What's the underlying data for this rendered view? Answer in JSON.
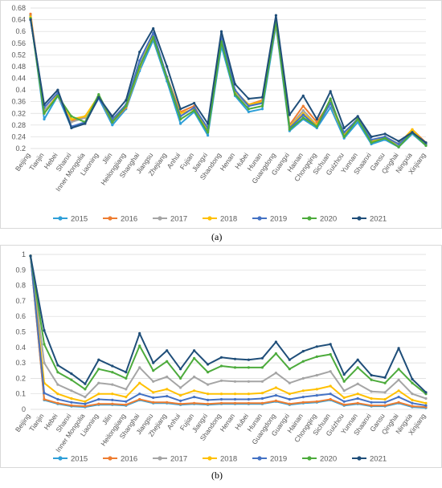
{
  "captions": {
    "a": "(a)",
    "b": "(b)"
  },
  "colors": {
    "2015": "#2e9fd8",
    "2016": "#ee7d31",
    "2017": "#a5a5a5",
    "2018": "#ffc000",
    "2019": "#4472c4",
    "2020": "#4dab3c",
    "2021": "#1f4e79"
  },
  "chart_data": [
    {
      "type": "line",
      "id": "a",
      "ylim": [
        0.2,
        0.68
      ],
      "yticks": [
        "0.2",
        "0.24",
        "0.28",
        "0.32",
        "0.36",
        "0.4",
        "0.44",
        "0.48",
        "0.52",
        "0.56",
        "0.6",
        "0.64",
        "0.68"
      ],
      "grid": true,
      "legend": "bottom",
      "categories": [
        "Beijing",
        "Tianjin",
        "Hebei",
        "Shanxi",
        "Inner Mongolia",
        "Liaoning",
        "Jilin",
        "Heilongjiang",
        "Shanghai",
        "Jiangsu",
        "Zhejiang",
        "Anhui",
        "Fujian",
        "Jiangxi",
        "Shandong",
        "Henan",
        "Hubei",
        "Hunan",
        "Guangdong",
        "Guangxi",
        "Hainan",
        "Chongqing",
        "Sichuan",
        "Guizhou",
        "Yunnan",
        "Shaanxi",
        "Gansu",
        "Qinghai",
        "Ningxia",
        "Xinjiang"
      ],
      "series": [
        {
          "name": "2015",
          "values": [
            0.655,
            0.3,
            0.38,
            0.272,
            0.29,
            0.372,
            0.28,
            0.335,
            0.465,
            0.57,
            0.43,
            0.285,
            0.325,
            0.245,
            0.55,
            0.38,
            0.325,
            0.335,
            0.62,
            0.26,
            0.3,
            0.27,
            0.34,
            0.235,
            0.29,
            0.215,
            0.23,
            0.205,
            0.25,
            0.21
          ]
        },
        {
          "name": "2016",
          "values": [
            0.66,
            0.32,
            0.385,
            0.295,
            0.305,
            0.378,
            0.29,
            0.34,
            0.48,
            0.58,
            0.445,
            0.325,
            0.345,
            0.26,
            0.57,
            0.395,
            0.35,
            0.365,
            0.635,
            0.28,
            0.345,
            0.29,
            0.36,
            0.25,
            0.3,
            0.225,
            0.24,
            0.215,
            0.265,
            0.22
          ]
        },
        {
          "name": "2017",
          "values": [
            0.645,
            0.33,
            0.38,
            0.29,
            0.305,
            0.38,
            0.295,
            0.345,
            0.49,
            0.58,
            0.44,
            0.32,
            0.335,
            0.265,
            0.57,
            0.39,
            0.345,
            0.36,
            0.63,
            0.275,
            0.33,
            0.28,
            0.355,
            0.245,
            0.305,
            0.225,
            0.235,
            0.21,
            0.26,
            0.215
          ]
        },
        {
          "name": "2018",
          "values": [
            0.65,
            0.32,
            0.385,
            0.3,
            0.31,
            0.38,
            0.3,
            0.345,
            0.475,
            0.59,
            0.445,
            0.32,
            0.335,
            0.265,
            0.575,
            0.395,
            0.35,
            0.36,
            0.63,
            0.275,
            0.32,
            0.28,
            0.355,
            0.245,
            0.3,
            0.225,
            0.235,
            0.215,
            0.265,
            0.215
          ]
        },
        {
          "name": "2019",
          "values": [
            0.645,
            0.34,
            0.39,
            0.275,
            0.29,
            0.372,
            0.3,
            0.35,
            0.5,
            0.595,
            0.445,
            0.31,
            0.34,
            0.27,
            0.58,
            0.4,
            0.345,
            0.355,
            0.64,
            0.27,
            0.315,
            0.275,
            0.355,
            0.255,
            0.3,
            0.23,
            0.24,
            0.215,
            0.255,
            0.215
          ]
        },
        {
          "name": "2020",
          "values": [
            0.645,
            0.32,
            0.38,
            0.31,
            0.29,
            0.385,
            0.29,
            0.345,
            0.48,
            0.58,
            0.44,
            0.3,
            0.33,
            0.255,
            0.565,
            0.385,
            0.335,
            0.345,
            0.635,
            0.265,
            0.305,
            0.275,
            0.37,
            0.24,
            0.3,
            0.22,
            0.235,
            0.205,
            0.255,
            0.21
          ]
        },
        {
          "name": "2021",
          "values": [
            0.64,
            0.35,
            0.4,
            0.27,
            0.285,
            0.375,
            0.31,
            0.365,
            0.53,
            0.61,
            0.48,
            0.335,
            0.355,
            0.285,
            0.6,
            0.42,
            0.37,
            0.375,
            0.655,
            0.315,
            0.38,
            0.3,
            0.395,
            0.27,
            0.31,
            0.24,
            0.25,
            0.225,
            0.255,
            0.22
          ]
        }
      ]
    },
    {
      "type": "line",
      "id": "b",
      "ylim": [
        0,
        1
      ],
      "yticks": [
        "0",
        "0.1",
        "0.2",
        "0.3",
        "0.4",
        "0.5",
        "0.6",
        "0.7",
        "0.8",
        "0.9",
        "1"
      ],
      "grid": true,
      "legend": "bottom",
      "categories": [
        "Beijing",
        "Tianjin",
        "Hebei",
        "Shanxi",
        "Inner Mongolia",
        "Liaoning",
        "Jilin",
        "Heilongjiang",
        "Shanghai",
        "Jiangsu",
        "Zhejiang",
        "Anhui",
        "Fujian",
        "Jiangxi",
        "Shandong",
        "Henan",
        "Hubei",
        "Hunan",
        "Guangdong",
        "Guangxi",
        "Hainan",
        "Chongqing",
        "Sichuan",
        "Guizhou",
        "Yunnan",
        "Shaanxi",
        "Gansu",
        "Qinghai",
        "Ningxia",
        "Xinjiang"
      ],
      "series": [
        {
          "name": "2015",
          "values": [
            0.99,
            0.06,
            0.035,
            0.02,
            0.015,
            0.03,
            0.03,
            0.025,
            0.06,
            0.04,
            0.04,
            0.03,
            0.035,
            0.03,
            0.035,
            0.035,
            0.035,
            0.035,
            0.05,
            0.03,
            0.04,
            0.045,
            0.06,
            0.025,
            0.035,
            0.02,
            0.02,
            0.04,
            0.015,
            0.01
          ]
        },
        {
          "name": "2016",
          "values": [
            0.99,
            0.065,
            0.04,
            0.025,
            0.02,
            0.035,
            0.035,
            0.03,
            0.065,
            0.045,
            0.045,
            0.035,
            0.04,
            0.035,
            0.04,
            0.04,
            0.04,
            0.04,
            0.055,
            0.035,
            0.045,
            0.05,
            0.065,
            0.03,
            0.04,
            0.025,
            0.025,
            0.045,
            0.02,
            0.015
          ]
        },
        {
          "name": "2017",
          "values": [
            0.99,
            0.3,
            0.16,
            0.12,
            0.08,
            0.17,
            0.16,
            0.13,
            0.27,
            0.18,
            0.21,
            0.14,
            0.21,
            0.16,
            0.185,
            0.18,
            0.18,
            0.18,
            0.235,
            0.17,
            0.2,
            0.22,
            0.245,
            0.12,
            0.165,
            0.115,
            0.11,
            0.19,
            0.1,
            0.07
          ]
        },
        {
          "name": "2018",
          "values": [
            0.99,
            0.17,
            0.1,
            0.07,
            0.05,
            0.1,
            0.1,
            0.08,
            0.17,
            0.11,
            0.13,
            0.09,
            0.12,
            0.1,
            0.1,
            0.1,
            0.1,
            0.105,
            0.14,
            0.1,
            0.12,
            0.13,
            0.15,
            0.075,
            0.1,
            0.07,
            0.065,
            0.12,
            0.06,
            0.04
          ]
        },
        {
          "name": "2019",
          "values": [
            0.99,
            0.105,
            0.065,
            0.045,
            0.035,
            0.065,
            0.06,
            0.05,
            0.1,
            0.075,
            0.085,
            0.055,
            0.08,
            0.06,
            0.065,
            0.065,
            0.065,
            0.07,
            0.09,
            0.065,
            0.08,
            0.09,
            0.1,
            0.05,
            0.07,
            0.045,
            0.045,
            0.08,
            0.04,
            0.025
          ]
        },
        {
          "name": "2020",
          "values": [
            0.99,
            0.42,
            0.24,
            0.19,
            0.13,
            0.26,
            0.24,
            0.2,
            0.41,
            0.25,
            0.31,
            0.2,
            0.33,
            0.24,
            0.28,
            0.27,
            0.27,
            0.27,
            0.36,
            0.26,
            0.31,
            0.34,
            0.355,
            0.18,
            0.27,
            0.19,
            0.17,
            0.26,
            0.17,
            0.1
          ]
        },
        {
          "name": "2021",
          "values": [
            0.99,
            0.51,
            0.285,
            0.23,
            0.165,
            0.32,
            0.28,
            0.24,
            0.49,
            0.3,
            0.38,
            0.26,
            0.38,
            0.29,
            0.335,
            0.325,
            0.32,
            0.33,
            0.435,
            0.32,
            0.375,
            0.405,
            0.42,
            0.225,
            0.32,
            0.22,
            0.205,
            0.395,
            0.195,
            0.11
          ]
        }
      ]
    }
  ]
}
